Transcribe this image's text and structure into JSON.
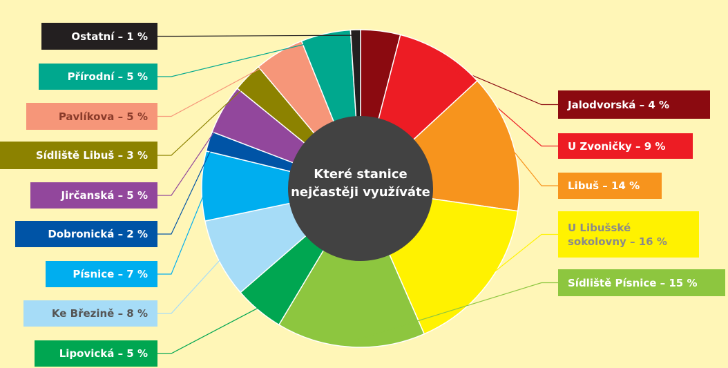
{
  "chart_data": {
    "type": "pie",
    "title": "Které stanice nejčastěji využíváte",
    "categories": [
      "Jalodvorská – 4 %",
      "U Zvoničky – 9 %",
      "Libuš – 14 %",
      "U Libušské sokolovny – 16 %",
      "Sídliště Písnice – 15 %",
      "Lipovická – 5 %",
      "Ke Březině – 8 %",
      "Písnice – 7 %",
      "Dobronická – 2 %",
      "Jirčanská – 5 %",
      "Sídliště Libuš – 3 %",
      "Pavlíkova – 5 %",
      "Přírodní – 5 %",
      "Ostatní – 1 %"
    ],
    "values": [
      4,
      9,
      14,
      16,
      15,
      5,
      8,
      7,
      2,
      5,
      3,
      5,
      5,
      1
    ],
    "colors": [
      "#8b0a10",
      "#ed1c24",
      "#f7941d",
      "#fff200",
      "#8dc63f",
      "#00a651",
      "#a6dcf7",
      "#00aeef",
      "#0054a6",
      "#92479c",
      "#8c8200",
      "#f69679",
      "#00a88e",
      "#231f20"
    ]
  }
}
